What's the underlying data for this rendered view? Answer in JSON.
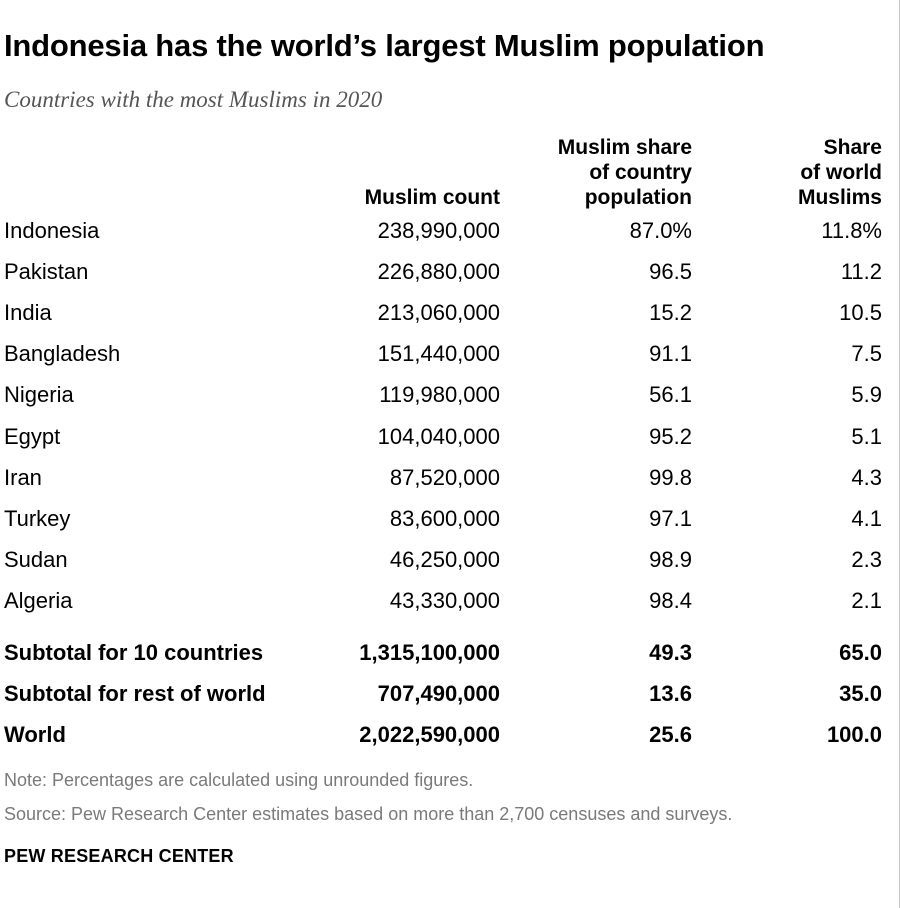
{
  "title": "Indonesia has the world’s largest Muslim population",
  "subtitle": "Countries with the most Muslims in 2020",
  "chart_data": {
    "type": "table",
    "columns": [
      {
        "lines": [
          ""
        ]
      },
      {
        "lines": [
          "Muslim count"
        ]
      },
      {
        "lines": [
          "Muslim share",
          "of country",
          "population"
        ]
      },
      {
        "lines": [
          "Share",
          "of world",
          "Muslims"
        ]
      }
    ],
    "rows": [
      {
        "country": "Indonesia",
        "count": "238,990,000",
        "share_country": "87.0%",
        "share_world": "11.8%"
      },
      {
        "country": "Pakistan",
        "count": "226,880,000",
        "share_country": "96.5",
        "share_world": "11.2"
      },
      {
        "country": "India",
        "count": "213,060,000",
        "share_country": "15.2",
        "share_world": "10.5"
      },
      {
        "country": "Bangladesh",
        "count": "151,440,000",
        "share_country": "91.1",
        "share_world": "7.5"
      },
      {
        "country": "Nigeria",
        "count": "119,980,000",
        "share_country": "56.1",
        "share_world": "5.9"
      },
      {
        "country": "Egypt",
        "count": "104,040,000",
        "share_country": "95.2",
        "share_world": "5.1"
      },
      {
        "country": "Iran",
        "count": "87,520,000",
        "share_country": "99.8",
        "share_world": "4.3"
      },
      {
        "country": "Turkey",
        "count": "83,600,000",
        "share_country": "97.1",
        "share_world": "4.1"
      },
      {
        "country": "Sudan",
        "count": "46,250,000",
        "share_country": "98.9",
        "share_world": "2.3"
      },
      {
        "country": "Algeria",
        "count": "43,330,000",
        "share_country": "98.4",
        "share_world": "2.1"
      }
    ],
    "totals": [
      {
        "country": "Subtotal for 10 countries",
        "count": "1,315,100,000",
        "share_country": "49.3",
        "share_world": "65.0"
      },
      {
        "country": "Subtotal for rest of world",
        "count": "707,490,000",
        "share_country": "13.6",
        "share_world": "35.0"
      },
      {
        "country": "World",
        "count": "2,022,590,000",
        "share_country": "25.6",
        "share_world": "100.0"
      }
    ]
  },
  "note": "Note: Percentages are calculated using unrounded figures.",
  "source": "Source: Pew Research Center estimates based on more than 2,700 censuses and surveys.",
  "brand": "PEW RESEARCH CENTER"
}
